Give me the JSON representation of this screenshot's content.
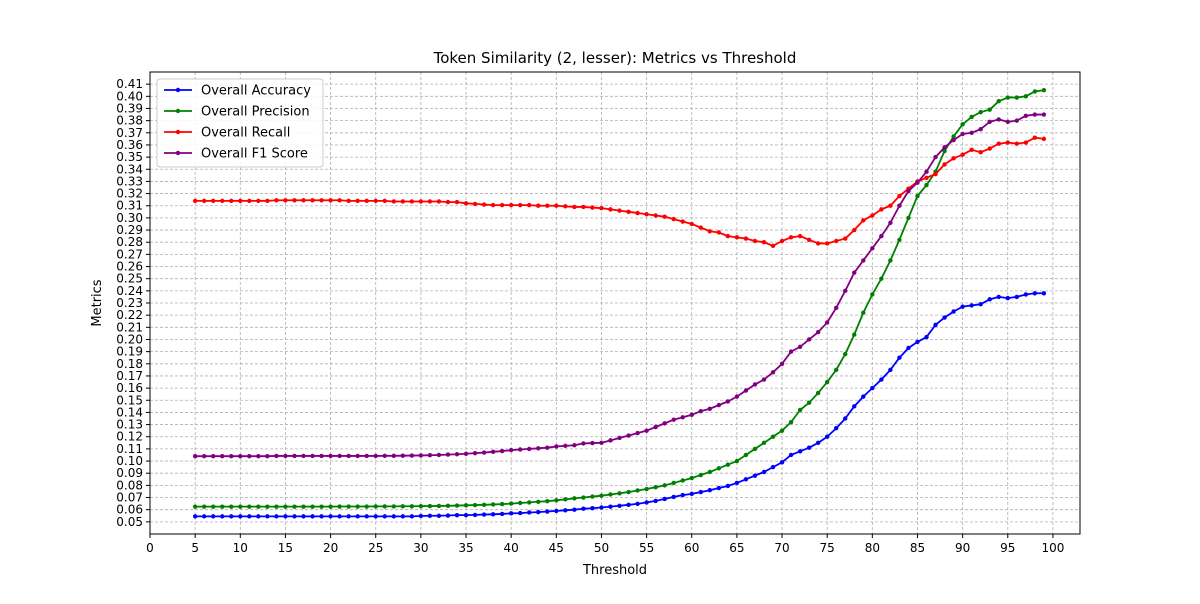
{
  "chart_data": {
    "type": "line",
    "title": "Token Similarity (2, lesser): Metrics vs Threshold",
    "xlabel": "Threshold",
    "ylabel": "Metrics",
    "xlim": [
      0,
      103
    ],
    "ylim": [
      0.04,
      0.42
    ],
    "xticks": [
      0,
      5,
      10,
      15,
      20,
      25,
      30,
      35,
      40,
      45,
      50,
      55,
      60,
      65,
      70,
      75,
      80,
      85,
      90,
      95,
      100
    ],
    "yticks": [
      0.05,
      0.06,
      0.07,
      0.08,
      0.09,
      0.1,
      0.11,
      0.12,
      0.13,
      0.14,
      0.15,
      0.16,
      0.17,
      0.18,
      0.19,
      0.2,
      0.21,
      0.22,
      0.23,
      0.24,
      0.25,
      0.26,
      0.27,
      0.28,
      0.29,
      0.3,
      0.31,
      0.32,
      0.33,
      0.34,
      0.35,
      0.36,
      0.37,
      0.38,
      0.39,
      0.4,
      0.41
    ],
    "grid": true,
    "legend_position": "top-left",
    "x": [
      5,
      6,
      7,
      8,
      9,
      10,
      11,
      12,
      13,
      14,
      15,
      16,
      17,
      18,
      19,
      20,
      21,
      22,
      23,
      24,
      25,
      26,
      27,
      28,
      29,
      30,
      31,
      32,
      33,
      34,
      35,
      36,
      37,
      38,
      39,
      40,
      41,
      42,
      43,
      44,
      45,
      46,
      47,
      48,
      49,
      50,
      51,
      52,
      53,
      54,
      55,
      56,
      57,
      58,
      59,
      60,
      61,
      62,
      63,
      64,
      65,
      66,
      67,
      68,
      69,
      70,
      71,
      72,
      73,
      74,
      75,
      76,
      77,
      78,
      79,
      80,
      81,
      82,
      83,
      84,
      85,
      86,
      87,
      88,
      89,
      90,
      91,
      92,
      93,
      94,
      95,
      96,
      97,
      98,
      99
    ],
    "series": [
      {
        "name": "Overall Accuracy",
        "color": "#0000ff",
        "values": [
          0.0545,
          0.0545,
          0.0545,
          0.0545,
          0.0545,
          0.0545,
          0.0545,
          0.0545,
          0.0545,
          0.0545,
          0.0545,
          0.0545,
          0.0545,
          0.0545,
          0.0545,
          0.0545,
          0.0545,
          0.0545,
          0.0545,
          0.0545,
          0.0545,
          0.0545,
          0.0545,
          0.0545,
          0.0545,
          0.0548,
          0.055,
          0.055,
          0.0552,
          0.0555,
          0.0555,
          0.0557,
          0.056,
          0.0562,
          0.0565,
          0.057,
          0.0572,
          0.0577,
          0.058,
          0.0585,
          0.059,
          0.0595,
          0.06,
          0.0608,
          0.0612,
          0.0618,
          0.0625,
          0.0632,
          0.064,
          0.0648,
          0.066,
          0.0672,
          0.0688,
          0.0705,
          0.072,
          0.073,
          0.0745,
          0.076,
          0.0778,
          0.0795,
          0.082,
          0.085,
          0.088,
          0.091,
          0.095,
          0.099,
          0.105,
          0.108,
          0.111,
          0.115,
          0.12,
          0.127,
          0.135,
          0.145,
          0.153,
          0.16,
          0.167,
          0.175,
          0.185,
          0.193,
          0.198,
          0.202,
          0.212,
          0.218,
          0.223,
          0.227,
          0.228,
          0.229,
          0.233,
          0.235,
          0.234,
          0.235,
          0.237,
          0.238,
          0.238
        ]
      },
      {
        "name": "Overall Precision",
        "color": "#008000",
        "values": [
          0.0625,
          0.0625,
          0.0625,
          0.0625,
          0.0625,
          0.0625,
          0.0625,
          0.0625,
          0.0625,
          0.0625,
          0.0625,
          0.0625,
          0.0625,
          0.0625,
          0.0625,
          0.0625,
          0.0626,
          0.0626,
          0.0626,
          0.0626,
          0.0627,
          0.0627,
          0.0627,
          0.0628,
          0.0628,
          0.0629,
          0.063,
          0.0631,
          0.0632,
          0.0634,
          0.0636,
          0.0638,
          0.064,
          0.0643,
          0.0646,
          0.065,
          0.0655,
          0.066,
          0.0665,
          0.067,
          0.0677,
          0.0685,
          0.0693,
          0.07,
          0.0708,
          0.0715,
          0.0725,
          0.0735,
          0.0745,
          0.0758,
          0.077,
          0.0785,
          0.08,
          0.082,
          0.084,
          0.086,
          0.0885,
          0.091,
          0.094,
          0.097,
          0.1,
          0.105,
          0.11,
          0.115,
          0.12,
          0.125,
          0.132,
          0.142,
          0.148,
          0.156,
          0.165,
          0.175,
          0.188,
          0.204,
          0.222,
          0.237,
          0.25,
          0.265,
          0.282,
          0.3,
          0.318,
          0.327,
          0.338,
          0.355,
          0.367,
          0.377,
          0.383,
          0.387,
          0.389,
          0.396,
          0.399,
          0.399,
          0.4,
          0.404,
          0.405
        ]
      },
      {
        "name": "Overall Recall",
        "color": "#ff0000",
        "values": [
          0.314,
          0.314,
          0.314,
          0.314,
          0.314,
          0.314,
          0.314,
          0.314,
          0.314,
          0.3145,
          0.3145,
          0.3145,
          0.3145,
          0.3145,
          0.3145,
          0.3145,
          0.3145,
          0.314,
          0.314,
          0.314,
          0.314,
          0.314,
          0.3135,
          0.3135,
          0.3135,
          0.3135,
          0.3135,
          0.3135,
          0.313,
          0.313,
          0.312,
          0.3115,
          0.311,
          0.3105,
          0.3105,
          0.3105,
          0.3105,
          0.3105,
          0.31,
          0.31,
          0.31,
          0.3095,
          0.309,
          0.309,
          0.3085,
          0.308,
          0.307,
          0.306,
          0.305,
          0.304,
          0.303,
          0.302,
          0.301,
          0.299,
          0.297,
          0.295,
          0.292,
          0.289,
          0.288,
          0.285,
          0.284,
          0.283,
          0.281,
          0.28,
          0.277,
          0.281,
          0.284,
          0.285,
          0.282,
          0.279,
          0.279,
          0.281,
          0.283,
          0.29,
          0.298,
          0.302,
          0.307,
          0.31,
          0.318,
          0.324,
          0.33,
          0.333,
          0.336,
          0.344,
          0.349,
          0.352,
          0.356,
          0.354,
          0.357,
          0.361,
          0.362,
          0.361,
          0.362,
          0.366,
          0.365
        ]
      },
      {
        "name": "Overall F1 Score",
        "color": "#800080",
        "values": [
          0.104,
          0.104,
          0.104,
          0.104,
          0.104,
          0.104,
          0.104,
          0.104,
          0.104,
          0.1042,
          0.1042,
          0.1042,
          0.1042,
          0.1042,
          0.1042,
          0.1042,
          0.1042,
          0.1042,
          0.1042,
          0.1042,
          0.1042,
          0.1043,
          0.1043,
          0.1044,
          0.1045,
          0.1046,
          0.1048,
          0.105,
          0.1053,
          0.1056,
          0.106,
          0.1065,
          0.107,
          0.1076,
          0.1082,
          0.109,
          0.1095,
          0.11,
          0.1105,
          0.111,
          0.112,
          0.1125,
          0.113,
          0.1145,
          0.1148,
          0.115,
          0.117,
          0.119,
          0.121,
          0.123,
          0.125,
          0.128,
          0.131,
          0.134,
          0.136,
          0.138,
          0.141,
          0.143,
          0.146,
          0.149,
          0.153,
          0.158,
          0.163,
          0.167,
          0.173,
          0.18,
          0.19,
          0.194,
          0.2,
          0.206,
          0.214,
          0.226,
          0.24,
          0.255,
          0.265,
          0.275,
          0.285,
          0.296,
          0.31,
          0.322,
          0.329,
          0.338,
          0.35,
          0.358,
          0.364,
          0.369,
          0.37,
          0.373,
          0.379,
          0.381,
          0.379,
          0.38,
          0.384,
          0.385,
          0.385
        ]
      }
    ]
  }
}
